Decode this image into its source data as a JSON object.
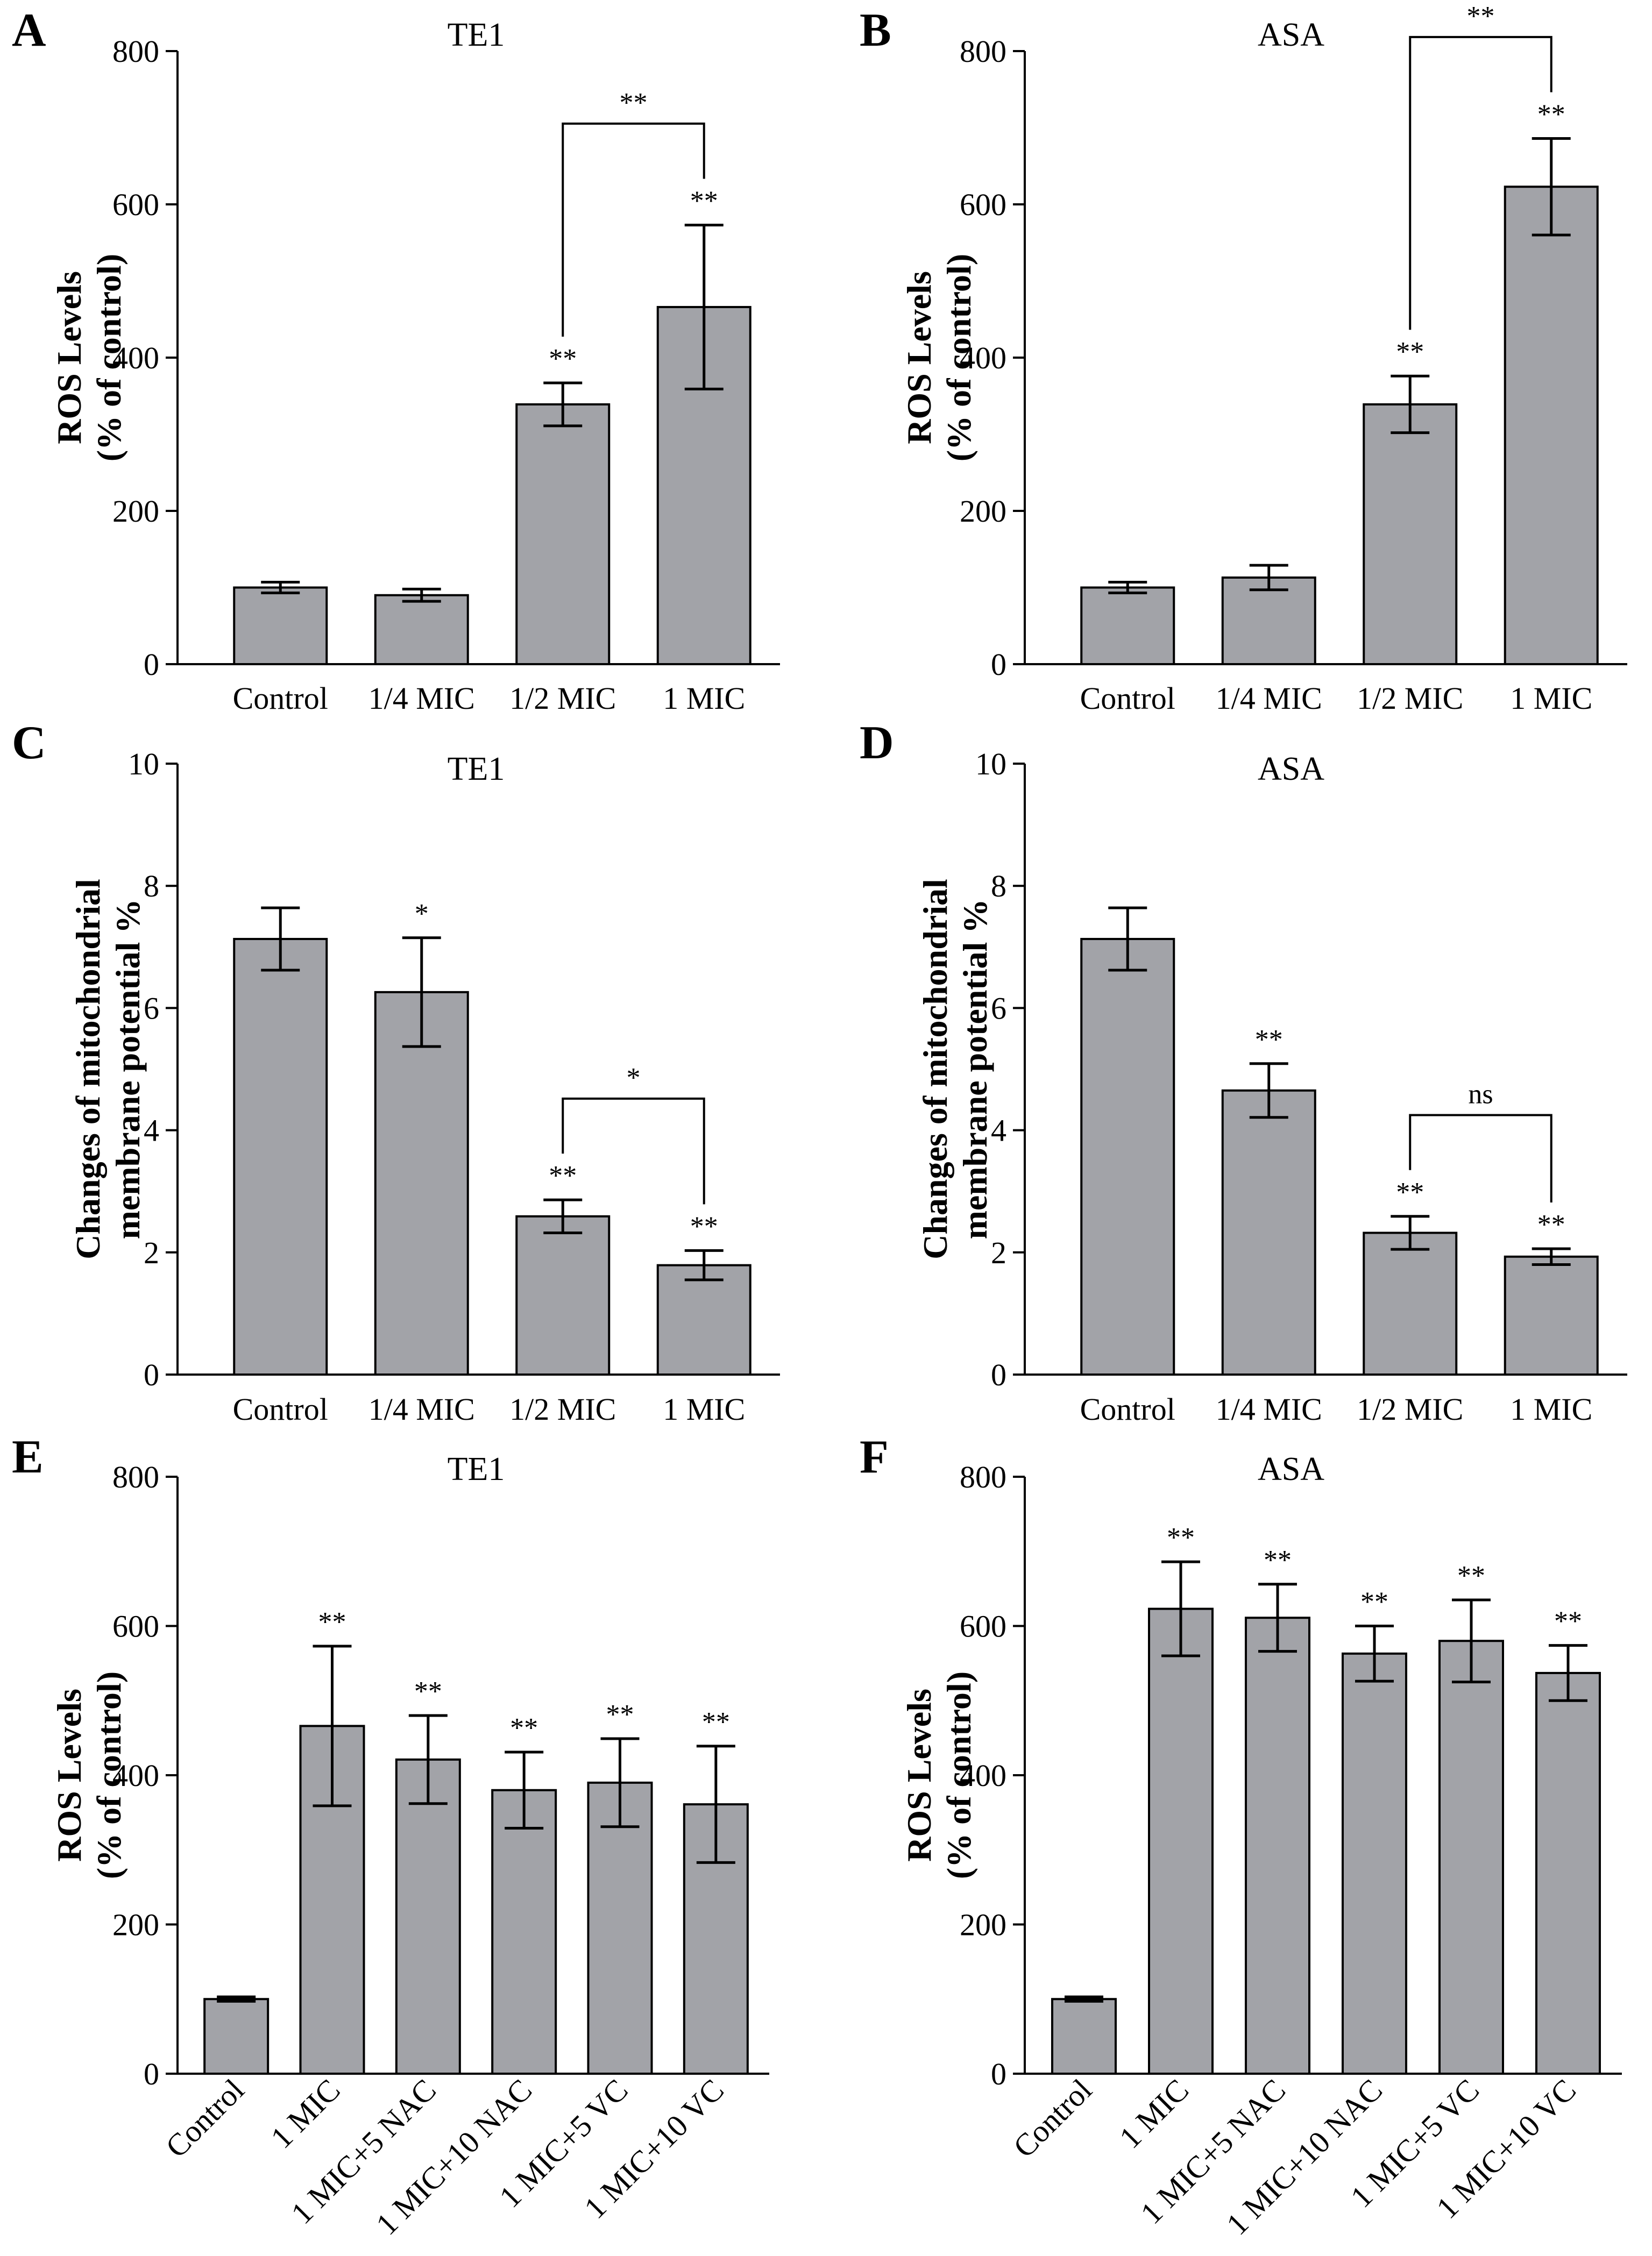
{
  "colors": {
    "bar": "#a2a3a8",
    "stroke": "#000000",
    "background": "#ffffff"
  },
  "chart_data": [
    {
      "panel": "A",
      "type": "bar",
      "title": "TE1",
      "ylabel": [
        "ROS Levels",
        "(% of control)"
      ],
      "xlabel": "",
      "ylim": [
        0,
        800
      ],
      "yticks": [
        0,
        200,
        400,
        600,
        800
      ],
      "categories": [
        "Control",
        "1/4 MIC",
        "1/2 MIC",
        "1 MIC"
      ],
      "rotated_labels": false,
      "values": [
        100,
        90,
        339,
        466
      ],
      "errors": [
        7,
        8,
        28,
        107
      ],
      "significance": [
        "",
        "",
        "**",
        "**"
      ],
      "brackets": [
        {
          "from": 2,
          "to": 3,
          "label": "**"
        }
      ],
      "grid": false,
      "legend": "none"
    },
    {
      "panel": "B",
      "type": "bar",
      "title": "ASA",
      "ylabel": [
        "ROS Levels",
        "(% of control)"
      ],
      "xlabel": "",
      "ylim": [
        0,
        800
      ],
      "yticks": [
        0,
        200,
        400,
        600,
        800
      ],
      "categories": [
        "Control",
        "1/4 MIC",
        "1/2 MIC",
        "1 MIC"
      ],
      "rotated_labels": false,
      "values": [
        100,
        113,
        339,
        623
      ],
      "errors": [
        7,
        16,
        37,
        63
      ],
      "significance": [
        "",
        "",
        "**",
        "**"
      ],
      "brackets": [
        {
          "from": 2,
          "to": 3,
          "label": "**"
        }
      ],
      "grid": false,
      "legend": "none"
    },
    {
      "panel": "C",
      "type": "bar",
      "title": "TE1",
      "ylabel": [
        "Changes of mitochondrial",
        "membrane potential %"
      ],
      "xlabel": "",
      "ylim": [
        0,
        10
      ],
      "yticks": [
        0,
        2,
        4,
        6,
        8,
        10
      ],
      "categories": [
        "Control",
        "1/4 MIC",
        "1/2 MIC",
        "1 MIC"
      ],
      "rotated_labels": false,
      "values": [
        7.13,
        6.26,
        2.59,
        1.79
      ],
      "errors": [
        0.51,
        0.89,
        0.27,
        0.24
      ],
      "significance": [
        "",
        "*",
        "**",
        "**"
      ],
      "brackets": [
        {
          "from": 2,
          "to": 3,
          "label": "*"
        }
      ],
      "grid": false,
      "legend": "none"
    },
    {
      "panel": "D",
      "type": "bar",
      "title": "ASA",
      "ylabel": [
        "Changes of mitochondrial",
        "membrane potential %"
      ],
      "xlabel": "",
      "ylim": [
        0,
        10
      ],
      "yticks": [
        0,
        2,
        4,
        6,
        8,
        10
      ],
      "categories": [
        "Control",
        "1/4 MIC",
        "1/2 MIC",
        "1 MIC"
      ],
      "rotated_labels": false,
      "values": [
        7.13,
        4.65,
        2.32,
        1.93
      ],
      "errors": [
        0.51,
        0.44,
        0.27,
        0.13
      ],
      "significance": [
        "",
        "**",
        "**",
        "**"
      ],
      "brackets": [
        {
          "from": 2,
          "to": 3,
          "label": "ns"
        }
      ],
      "grid": false,
      "legend": "none"
    },
    {
      "panel": "E",
      "type": "bar",
      "title": "TE1",
      "ylabel": [
        "ROS Levels",
        "(% of control)"
      ],
      "xlabel": "",
      "ylim": [
        0,
        800
      ],
      "yticks": [
        0,
        200,
        400,
        600,
        800
      ],
      "categories": [
        "Control",
        "1 MIC",
        "1 MIC+5 NAC",
        "1 MIC+10 NAC",
        "1 MIC+5 VC",
        "1 MIC+10 VC"
      ],
      "rotated_labels": true,
      "values": [
        100,
        466,
        421,
        380,
        390,
        361
      ],
      "errors": [
        3,
        107,
        59,
        51,
        59,
        78
      ],
      "significance": [
        "",
        "**",
        "**",
        "**",
        "**",
        "**"
      ],
      "brackets": [],
      "grid": false,
      "legend": "none"
    },
    {
      "panel": "F",
      "type": "bar",
      "title": "ASA",
      "ylabel": [
        "ROS Levels",
        "(% of control)"
      ],
      "xlabel": "",
      "ylim": [
        0,
        800
      ],
      "yticks": [
        0,
        200,
        400,
        600,
        800
      ],
      "categories": [
        "Control",
        "1 MIC",
        "1 MIC+5 NAC",
        "1 MIC+10 NAC",
        "1 MIC+5 VC",
        "1 MIC+10 VC"
      ],
      "rotated_labels": true,
      "values": [
        100,
        623,
        611,
        563,
        580,
        537
      ],
      "errors": [
        3,
        63,
        45,
        37,
        55,
        37
      ],
      "significance": [
        "",
        "**",
        "**",
        "**",
        "**",
        "**"
      ],
      "brackets": [],
      "grid": false,
      "legend": "none"
    }
  ]
}
